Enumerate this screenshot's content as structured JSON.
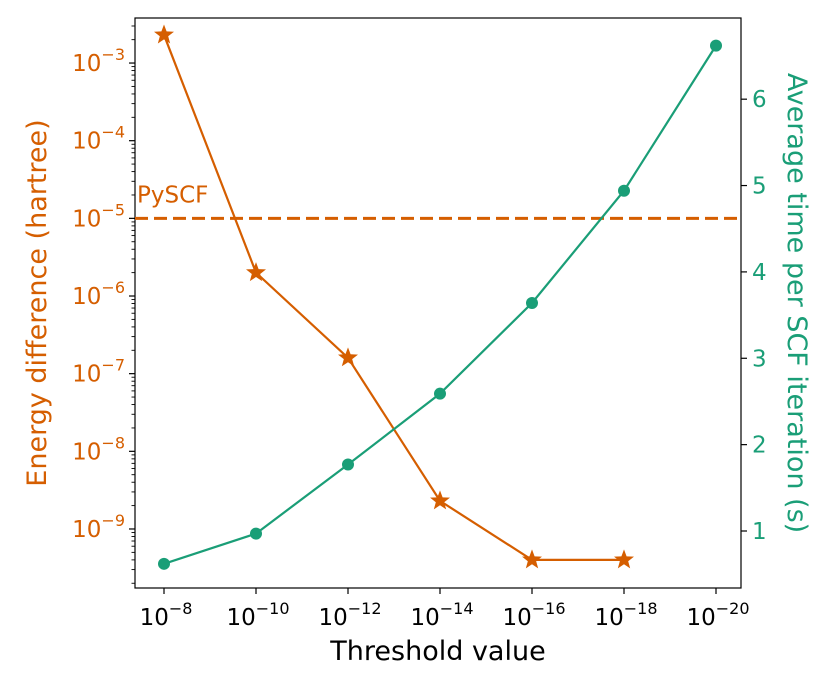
{
  "chart_data": {
    "type": "line",
    "title": "",
    "xlabel": "Threshold value",
    "ylabel_left": "Energy difference (hartree)",
    "ylabel_right": "Average time per SCF iteration (s)",
    "colors": {
      "energy": "#d55e00",
      "time": "#1a9e77",
      "axis": "#000000"
    },
    "x_categories": [
      {
        "base": "10",
        "exp": "−8"
      },
      {
        "base": "10",
        "exp": "−10"
      },
      {
        "base": "10",
        "exp": "−12"
      },
      {
        "base": "10",
        "exp": "−14"
      },
      {
        "base": "10",
        "exp": "−16"
      },
      {
        "base": "10",
        "exp": "−18"
      },
      {
        "base": "10",
        "exp": "−20"
      }
    ],
    "left_axis": {
      "scale": "log",
      "ylim_log10": [
        -9.76,
        -2.42
      ],
      "ticks": [
        {
          "log10": -3,
          "base": "10",
          "exp": "−3"
        },
        {
          "log10": -4,
          "base": "10",
          "exp": "−4"
        },
        {
          "log10": -5,
          "base": "10",
          "exp": "−5"
        },
        {
          "log10": -6,
          "base": "10",
          "exp": "−6"
        },
        {
          "log10": -7,
          "base": "10",
          "exp": "−7"
        },
        {
          "log10": -8,
          "base": "10",
          "exp": "−8"
        },
        {
          "log10": -9,
          "base": "10",
          "exp": "−9"
        }
      ]
    },
    "right_axis": {
      "scale": "linear",
      "ylim": [
        0.34,
        6.94
      ],
      "ticks": [
        {
          "value": 1,
          "label": "1"
        },
        {
          "value": 2,
          "label": "2"
        },
        {
          "value": 3,
          "label": "3"
        },
        {
          "value": 4,
          "label": "4"
        },
        {
          "value": 5,
          "label": "5"
        },
        {
          "value": 6,
          "label": "6"
        }
      ]
    },
    "series": [
      {
        "name": "Energy difference",
        "axis": "left",
        "marker": "star",
        "x_index": [
          0,
          1,
          2,
          3,
          4,
          5
        ],
        "values": [
          0.0023,
          2e-06,
          1.6e-07,
          2.3e-09,
          4e-10,
          4e-10
        ]
      },
      {
        "name": "Average time per SCF iteration",
        "axis": "right",
        "marker": "circle",
        "x_index": [
          0,
          1,
          2,
          3,
          4,
          5,
          6
        ],
        "values": [
          0.62,
          0.97,
          1.77,
          2.59,
          3.64,
          4.94,
          6.62
        ]
      }
    ],
    "reference_line": {
      "label": "PySCF",
      "value": 1e-05,
      "axis": "left",
      "style": "dashed"
    }
  }
}
